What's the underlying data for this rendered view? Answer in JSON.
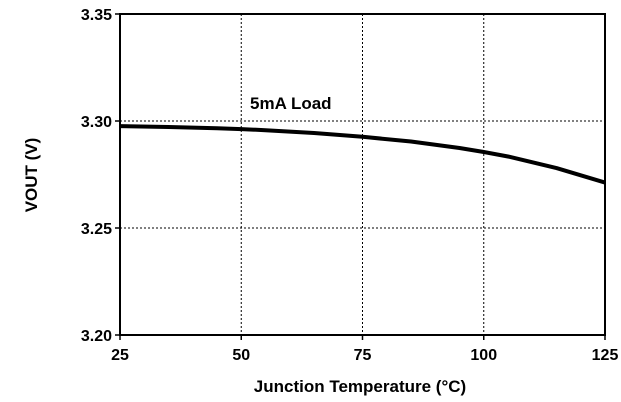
{
  "chart_data": {
    "type": "line",
    "title": "",
    "xlabel": "Junction Temperature (°C)",
    "ylabel": "VOUT (V)",
    "xlim": [
      25,
      125
    ],
    "ylim": [
      3.2,
      3.35
    ],
    "xticks": [
      "25",
      "50",
      "75",
      "100",
      "125"
    ],
    "yticks": [
      "3.20",
      "3.25",
      "3.30",
      "3.35"
    ],
    "grid": true,
    "annotation": "5mA Load",
    "series": [
      {
        "x": [
          25,
          35,
          45,
          50,
          55,
          65,
          75,
          85,
          95,
          100,
          105,
          115,
          125
        ],
        "values": [
          3.2976,
          3.2972,
          3.2966,
          3.2962,
          3.2957,
          3.2944,
          3.2926,
          3.2904,
          3.2874,
          3.2855,
          3.2834,
          3.278,
          3.2712
        ]
      }
    ]
  }
}
